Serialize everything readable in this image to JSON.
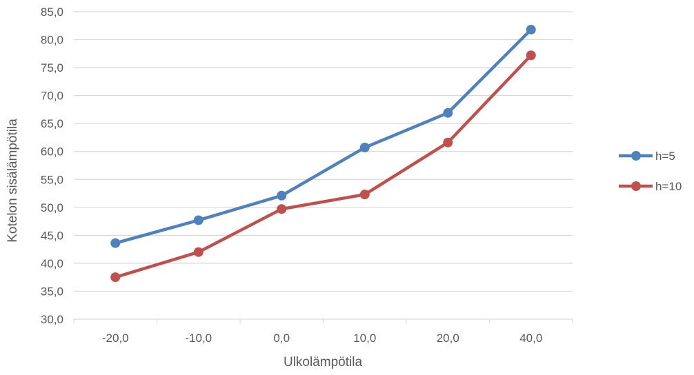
{
  "chart_data": {
    "type": "line",
    "title": "",
    "xlabel": "Ulkolämpötila",
    "ylabel": "Kotelon sisälämpötila",
    "categories": [
      "-20,0",
      "-10,0",
      "0,0",
      "10,0",
      "20,0",
      "40,0"
    ],
    "y_ticks": [
      "30,0",
      "35,0",
      "40,0",
      "45,0",
      "50,0",
      "55,0",
      "60,0",
      "65,0",
      "70,0",
      "75,0",
      "80,0",
      "85,0"
    ],
    "ylim": [
      30,
      85
    ],
    "grid": true,
    "legend_position": "right",
    "series": [
      {
        "name": "h=5",
        "color": "#4f81bd",
        "values": [
          43.6,
          47.7,
          52.1,
          60.7,
          66.9,
          81.8
        ]
      },
      {
        "name": "h=10",
        "color": "#c0504d",
        "values": [
          37.5,
          42.0,
          49.7,
          52.3,
          61.6,
          77.2
        ]
      }
    ]
  }
}
